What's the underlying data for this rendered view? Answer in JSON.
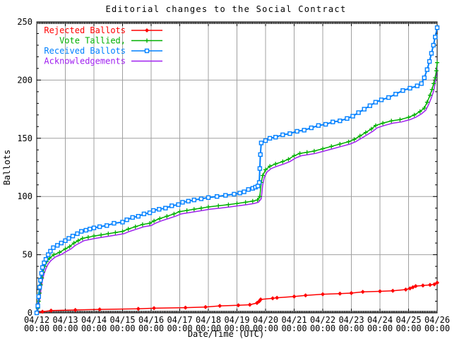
{
  "chart_data": {
    "type": "line",
    "title": "Editorial changes to the Social Contract",
    "xlabel": "Date/Time (UTC)",
    "ylabel": "Ballots",
    "ylim": [
      0,
      250
    ],
    "xlim_days": [
      0,
      14
    ],
    "y_ticks": [
      0,
      50,
      100,
      150,
      200,
      250
    ],
    "x_ticks": [
      {
        "date": "04/12",
        "time": "00:00"
      },
      {
        "date": "04/13",
        "time": "00:00"
      },
      {
        "date": "04/14",
        "time": "00:00"
      },
      {
        "date": "04/15",
        "time": "00:00"
      },
      {
        "date": "04/16",
        "time": "00:00"
      },
      {
        "date": "04/17",
        "time": "00:00"
      },
      {
        "date": "04/18",
        "time": "00:00"
      },
      {
        "date": "04/19",
        "time": "00:00"
      },
      {
        "date": "04/20",
        "time": "00:00"
      },
      {
        "date": "04/21",
        "time": "00:00"
      },
      {
        "date": "04/22",
        "time": "00:00"
      },
      {
        "date": "04/23",
        "time": "00:00"
      },
      {
        "date": "04/24",
        "time": "00:00"
      },
      {
        "date": "04/25",
        "time": "00:00"
      },
      {
        "date": "04/26",
        "time": "00:00"
      }
    ],
    "grid": true,
    "grid_color": "#a0a0a0",
    "background": "#ffffff",
    "legend_position": "top-left",
    "minor_ticks": {
      "x_per_day": 24,
      "y_step": 10
    },
    "series": [
      {
        "name": "Rejected Ballots",
        "color": "#ff0000",
        "marker": "diamond",
        "points": [
          [
            0,
            0
          ],
          [
            0.2,
            1
          ],
          [
            0.5,
            2
          ],
          [
            1.35,
            2.5
          ],
          [
            2.2,
            3
          ],
          [
            3.55,
            3.5
          ],
          [
            4.1,
            4
          ],
          [
            5.2,
            4.5
          ],
          [
            5.9,
            5
          ],
          [
            6.4,
            6
          ],
          [
            7.05,
            6.5
          ],
          [
            7.45,
            7
          ],
          [
            7.7,
            8.5
          ],
          [
            7.78,
            10
          ],
          [
            7.83,
            11.5
          ],
          [
            8.25,
            12.5
          ],
          [
            8.4,
            13
          ],
          [
            9.0,
            14
          ],
          [
            9.4,
            15
          ],
          [
            10.0,
            16
          ],
          [
            10.6,
            16.5
          ],
          [
            11.0,
            17
          ],
          [
            11.4,
            18
          ],
          [
            12.0,
            18.5
          ],
          [
            12.45,
            19
          ],
          [
            12.9,
            20
          ],
          [
            13.05,
            21
          ],
          [
            13.15,
            22
          ],
          [
            13.25,
            23
          ],
          [
            13.5,
            23.5
          ],
          [
            13.75,
            24
          ],
          [
            13.9,
            24.5
          ],
          [
            14,
            26
          ]
        ]
      },
      {
        "name": "Vote Tallied,",
        "color": "#00b000",
        "marker": "plus",
        "points": [
          [
            0,
            0
          ],
          [
            0.04,
            4
          ],
          [
            0.07,
            10
          ],
          [
            0.1,
            17
          ],
          [
            0.14,
            24
          ],
          [
            0.18,
            30
          ],
          [
            0.22,
            35
          ],
          [
            0.28,
            40
          ],
          [
            0.35,
            44
          ],
          [
            0.45,
            47
          ],
          [
            0.6,
            50
          ],
          [
            0.8,
            52
          ],
          [
            1.0,
            55
          ],
          [
            1.15,
            57
          ],
          [
            1.3,
            60
          ],
          [
            1.45,
            62
          ],
          [
            1.6,
            64
          ],
          [
            1.8,
            65
          ],
          [
            2.0,
            66
          ],
          [
            2.25,
            67
          ],
          [
            2.5,
            68
          ],
          [
            2.75,
            69
          ],
          [
            3.0,
            70
          ],
          [
            3.2,
            72
          ],
          [
            3.45,
            74
          ],
          [
            3.7,
            76
          ],
          [
            3.95,
            77
          ],
          [
            4.1,
            79
          ],
          [
            4.3,
            81
          ],
          [
            4.55,
            83
          ],
          [
            4.8,
            85
          ],
          [
            5.0,
            87
          ],
          [
            5.25,
            88
          ],
          [
            5.5,
            89
          ],
          [
            5.75,
            90
          ],
          [
            6.0,
            91
          ],
          [
            6.35,
            92
          ],
          [
            6.7,
            93
          ],
          [
            7.0,
            94
          ],
          [
            7.3,
            95
          ],
          [
            7.55,
            96
          ],
          [
            7.72,
            97
          ],
          [
            7.8,
            100
          ],
          [
            7.85,
            112
          ],
          [
            7.9,
            118
          ],
          [
            8.0,
            123
          ],
          [
            8.15,
            126
          ],
          [
            8.35,
            128
          ],
          [
            8.6,
            130
          ],
          [
            8.8,
            132
          ],
          [
            9.0,
            135
          ],
          [
            9.2,
            137
          ],
          [
            9.45,
            138
          ],
          [
            9.7,
            139
          ],
          [
            10.0,
            141
          ],
          [
            10.3,
            143
          ],
          [
            10.6,
            145
          ],
          [
            10.9,
            147
          ],
          [
            11.1,
            149
          ],
          [
            11.3,
            152
          ],
          [
            11.5,
            155
          ],
          [
            11.7,
            158
          ],
          [
            11.85,
            161
          ],
          [
            12.1,
            163
          ],
          [
            12.4,
            165
          ],
          [
            12.7,
            166
          ],
          [
            13.0,
            168
          ],
          [
            13.2,
            170
          ],
          [
            13.4,
            173
          ],
          [
            13.55,
            176
          ],
          [
            13.65,
            181
          ],
          [
            13.75,
            187
          ],
          [
            13.82,
            192
          ],
          [
            13.88,
            197
          ],
          [
            13.93,
            202
          ],
          [
            13.97,
            208
          ],
          [
            14,
            215
          ]
        ]
      },
      {
        "name": "Received Ballots",
        "color": "#0080ff",
        "marker": "square",
        "points": [
          [
            0,
            0
          ],
          [
            0.04,
            6
          ],
          [
            0.07,
            14
          ],
          [
            0.1,
            22
          ],
          [
            0.13,
            28
          ],
          [
            0.17,
            34
          ],
          [
            0.2,
            39
          ],
          [
            0.26,
            43
          ],
          [
            0.32,
            46
          ],
          [
            0.4,
            50
          ],
          [
            0.48,
            53
          ],
          [
            0.58,
            56
          ],
          [
            0.72,
            58
          ],
          [
            0.86,
            60
          ],
          [
            1.0,
            62
          ],
          [
            1.12,
            64
          ],
          [
            1.26,
            66
          ],
          [
            1.42,
            68
          ],
          [
            1.56,
            70
          ],
          [
            1.72,
            71
          ],
          [
            1.86,
            72
          ],
          [
            2.0,
            73
          ],
          [
            2.2,
            74
          ],
          [
            2.45,
            75
          ],
          [
            2.7,
            77
          ],
          [
            3.0,
            78
          ],
          [
            3.15,
            80
          ],
          [
            3.35,
            82
          ],
          [
            3.55,
            83
          ],
          [
            3.75,
            85
          ],
          [
            3.95,
            86
          ],
          [
            4.08,
            88
          ],
          [
            4.28,
            89
          ],
          [
            4.5,
            90
          ],
          [
            4.72,
            92
          ],
          [
            4.95,
            93
          ],
          [
            5.1,
            95
          ],
          [
            5.3,
            96
          ],
          [
            5.5,
            97
          ],
          [
            5.75,
            98
          ],
          [
            6.0,
            99
          ],
          [
            6.3,
            100
          ],
          [
            6.6,
            101
          ],
          [
            6.9,
            102
          ],
          [
            7.1,
            103
          ],
          [
            7.25,
            104
          ],
          [
            7.4,
            106
          ],
          [
            7.55,
            107
          ],
          [
            7.65,
            108
          ],
          [
            7.73,
            109
          ],
          [
            7.78,
            112
          ],
          [
            7.8,
            124
          ],
          [
            7.82,
            136
          ],
          [
            7.85,
            146
          ],
          [
            8.0,
            148
          ],
          [
            8.15,
            150
          ],
          [
            8.35,
            151
          ],
          [
            8.6,
            153
          ],
          [
            8.85,
            154
          ],
          [
            9.1,
            156
          ],
          [
            9.35,
            157
          ],
          [
            9.6,
            159
          ],
          [
            9.85,
            161
          ],
          [
            10.1,
            162
          ],
          [
            10.35,
            164
          ],
          [
            10.6,
            165
          ],
          [
            10.85,
            167
          ],
          [
            11.05,
            169
          ],
          [
            11.25,
            172
          ],
          [
            11.45,
            175
          ],
          [
            11.65,
            178
          ],
          [
            11.85,
            181
          ],
          [
            12.05,
            183
          ],
          [
            12.3,
            185
          ],
          [
            12.55,
            188
          ],
          [
            12.8,
            191
          ],
          [
            13.05,
            193
          ],
          [
            13.3,
            195
          ],
          [
            13.45,
            197
          ],
          [
            13.55,
            202
          ],
          [
            13.65,
            209
          ],
          [
            13.73,
            216
          ],
          [
            13.8,
            223
          ],
          [
            13.87,
            230
          ],
          [
            13.93,
            237
          ],
          [
            14,
            245
          ]
        ]
      },
      {
        "name": "Acknowledgements",
        "color": "#a020f0",
        "marker": "none",
        "points": [
          [
            0,
            0
          ],
          [
            0.05,
            3
          ],
          [
            0.08,
            8
          ],
          [
            0.12,
            15
          ],
          [
            0.16,
            22
          ],
          [
            0.2,
            28
          ],
          [
            0.25,
            33
          ],
          [
            0.32,
            38
          ],
          [
            0.4,
            42
          ],
          [
            0.5,
            45
          ],
          [
            0.65,
            48
          ],
          [
            0.85,
            50
          ],
          [
            1.05,
            53
          ],
          [
            1.2,
            55
          ],
          [
            1.35,
            58
          ],
          [
            1.5,
            60
          ],
          [
            1.65,
            62
          ],
          [
            1.85,
            63
          ],
          [
            2.05,
            64
          ],
          [
            2.3,
            65
          ],
          [
            2.55,
            66
          ],
          [
            2.8,
            67
          ],
          [
            3.05,
            68
          ],
          [
            3.25,
            70
          ],
          [
            3.5,
            72
          ],
          [
            3.75,
            74
          ],
          [
            4.0,
            75
          ],
          [
            4.15,
            77
          ],
          [
            4.35,
            79
          ],
          [
            4.6,
            81
          ],
          [
            4.85,
            83
          ],
          [
            5.05,
            85
          ],
          [
            5.3,
            86
          ],
          [
            5.55,
            87
          ],
          [
            5.8,
            88
          ],
          [
            6.05,
            89
          ],
          [
            6.4,
            90
          ],
          [
            6.75,
            91
          ],
          [
            7.05,
            92
          ],
          [
            7.35,
            93
          ],
          [
            7.6,
            94
          ],
          [
            7.75,
            95
          ],
          [
            7.85,
            98
          ],
          [
            7.9,
            110
          ],
          [
            7.95,
            116
          ],
          [
            8.05,
            121
          ],
          [
            8.2,
            124
          ],
          [
            8.4,
            126
          ],
          [
            8.65,
            128
          ],
          [
            8.85,
            130
          ],
          [
            9.05,
            133
          ],
          [
            9.25,
            135
          ],
          [
            9.5,
            136
          ],
          [
            9.75,
            137
          ],
          [
            10.05,
            139
          ],
          [
            10.35,
            141
          ],
          [
            10.65,
            143
          ],
          [
            10.95,
            145
          ],
          [
            11.15,
            147
          ],
          [
            11.35,
            150
          ],
          [
            11.55,
            153
          ],
          [
            11.75,
            156
          ],
          [
            11.9,
            159
          ],
          [
            12.15,
            161
          ],
          [
            12.45,
            163
          ],
          [
            12.75,
            164
          ],
          [
            13.05,
            166
          ],
          [
            13.25,
            168
          ],
          [
            13.45,
            171
          ],
          [
            13.6,
            174
          ],
          [
            13.7,
            179
          ],
          [
            13.8,
            185
          ],
          [
            13.87,
            190
          ],
          [
            13.92,
            196
          ],
          [
            13.96,
            203
          ],
          [
            14,
            212
          ]
        ]
      }
    ]
  }
}
